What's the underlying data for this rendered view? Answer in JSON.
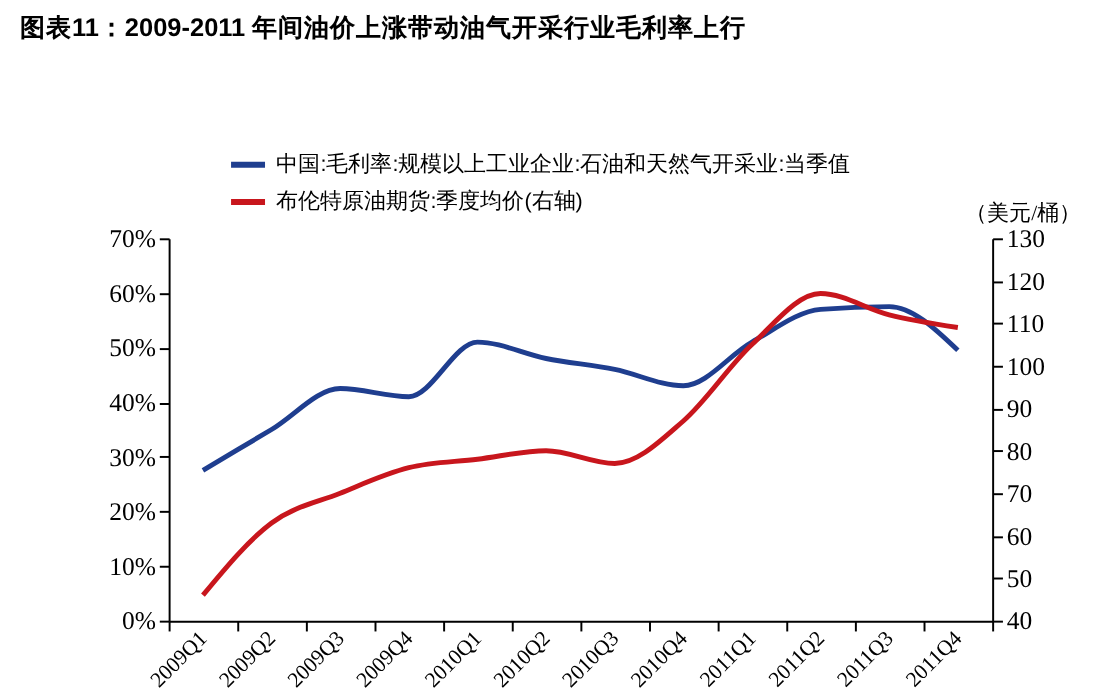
{
  "chart_data": {
    "type": "line",
    "title": "图表11：2009-2011 年间油价上涨带动油气开采行业毛利率上行",
    "y2label": "（美元/桶）",
    "categories": [
      "2009Q1",
      "2009Q2",
      "2009Q3",
      "2009Q4",
      "2010Q1",
      "2010Q2",
      "2010Q3",
      "2010Q4",
      "2011Q1",
      "2011Q2",
      "2011Q3",
      "2011Q4"
    ],
    "series": [
      {
        "name": "中国:毛利率:规模以上工业企业:石油和天然气开采业:当季值",
        "color": "#1f3e8f",
        "values": [
          27.5,
          35,
          42.5,
          41,
          51,
          48,
          46,
          43,
          51,
          57,
          57.5,
          49.5
        ]
      },
      {
        "name": "布伦特原油期货:季度均价(右轴)",
        "color": "#c8161d",
        "axis": "y2",
        "values": [
          46,
          63,
          70,
          76,
          78,
          80,
          77,
          87,
          105,
          117,
          112,
          109
        ]
      }
    ],
    "ylim": [
      0,
      70
    ],
    "yticks": [
      {
        "value": 0,
        "label": "0%"
      },
      {
        "value": 10,
        "label": "10%"
      },
      {
        "value": 20,
        "label": "20%"
      },
      {
        "value": 30,
        "label": "30%"
      },
      {
        "value": 40,
        "label": "40%"
      },
      {
        "value": 50,
        "label": "50%"
      },
      {
        "value": 60,
        "label": "60%"
      },
      {
        "value": 70,
        "label": "70%"
      }
    ],
    "y2lim": [
      40,
      130
    ],
    "y2ticks": [
      40,
      50,
      60,
      70,
      80,
      90,
      100,
      110,
      120,
      130
    ],
    "grid": false,
    "legend": "top left",
    "line_style": "solid",
    "marker": "none"
  }
}
